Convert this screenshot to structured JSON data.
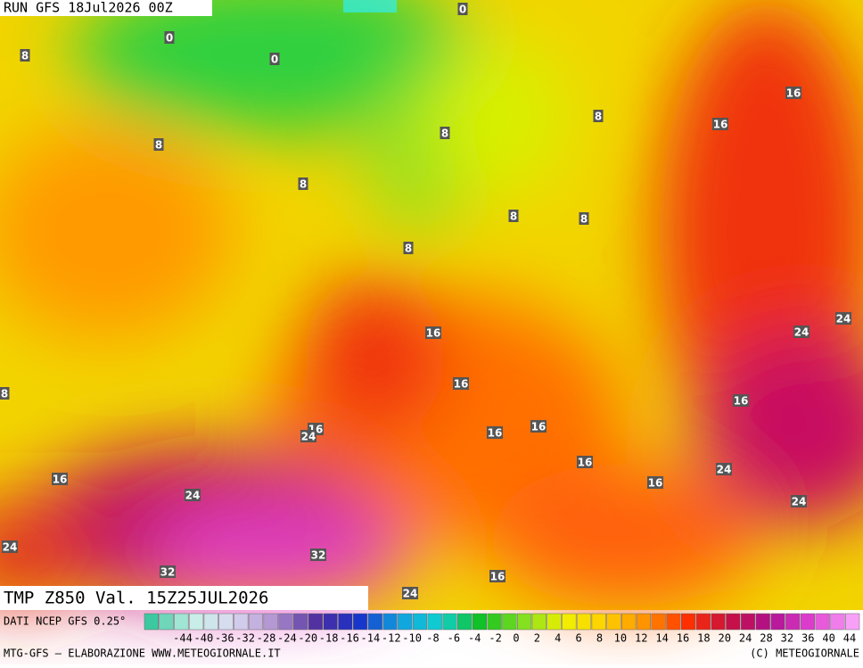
{
  "header": {
    "run": "RUN GFS 18Jul2026 00Z"
  },
  "map_title": "TMP Z850 Val. 15Z25JUL2026",
  "scale": {
    "source": "DATI NCEP GFS 0.25°",
    "labels": [
      -44,
      -40,
      -36,
      -32,
      -28,
      -24,
      -20,
      -18,
      -16,
      -14,
      -12,
      -10,
      -8,
      -6,
      -4,
      -2,
      0,
      2,
      4,
      6,
      8,
      10,
      12,
      14,
      16,
      18,
      20,
      24,
      28,
      32,
      36,
      40,
      44
    ]
  },
  "footer": {
    "credit": "MTG-GFS — ELABORAZIONE WWW.METEOGIORNALE.IT",
    "copyright": "(C) METEOGIORNALE"
  },
  "contour_labels": [
    0,
    0,
    0,
    8,
    8,
    8,
    8,
    16,
    16,
    8,
    8,
    8,
    8,
    24,
    24,
    16,
    8,
    16,
    16,
    16,
    24,
    16,
    16,
    16,
    24,
    16,
    16,
    24,
    24,
    24,
    32,
    32,
    16,
    24
  ]
}
